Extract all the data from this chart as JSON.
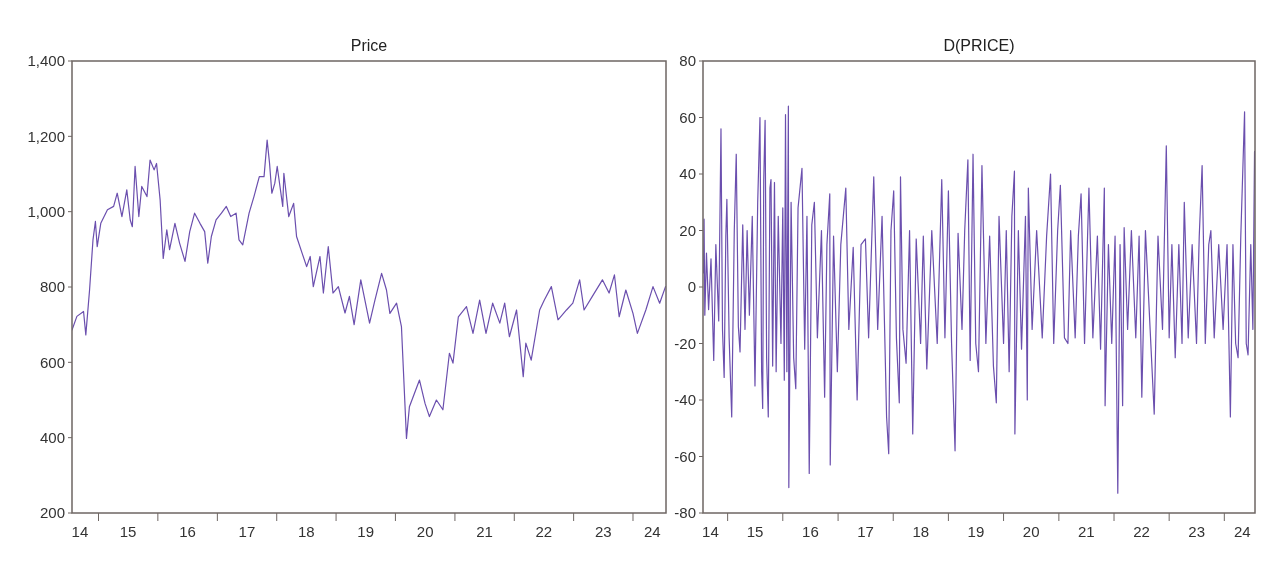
{
  "chart_data": [
    {
      "type": "line",
      "title": "Price",
      "x": [
        "2014-07-22",
        "2014-08-21",
        "2014-10-01",
        "2014-10-15",
        "2014-11-07",
        "2014-11-28",
        "2014-12-13",
        "2014-12-24",
        "2015-01-15",
        "2015-02-25",
        "2015-04-04",
        "2015-04-26",
        "2015-05-25",
        "2015-06-24",
        "2015-07-15",
        "2015-07-28",
        "2015-08-14",
        "2015-09-06",
        "2015-09-24",
        "2015-10-26",
        "2015-11-14",
        "2015-12-09",
        "2015-12-24",
        "2016-01-15",
        "2016-02-03",
        "2016-02-25",
        "2016-03-13",
        "2016-04-15",
        "2016-05-14",
        "2016-06-16",
        "2016-07-15",
        "2016-08-14",
        "2016-09-16",
        "2016-10-15",
        "2016-11-03",
        "2016-11-25",
        "2016-12-24",
        "2017-01-26",
        "2017-02-25",
        "2017-03-24",
        "2017-04-26",
        "2017-05-14",
        "2017-06-06",
        "2017-07-15",
        "2017-08-14",
        "2017-09-16",
        "2017-10-15",
        "2017-11-03",
        "2017-11-18",
        "2017-12-02",
        "2017-12-20",
        "2018-01-04",
        "2018-02-07",
        "2018-02-14",
        "2018-03-16",
        "2018-04-15",
        "2018-05-03",
        "2018-06-06",
        "2018-07-04",
        "2018-07-26",
        "2018-08-14",
        "2018-09-24",
        "2018-10-15",
        "2018-11-14",
        "2018-12-13",
        "2019-01-15",
        "2019-02-25",
        "2019-03-24",
        "2019-04-22",
        "2019-06-02",
        "2019-07-26",
        "2019-08-28",
        "2019-10-08",
        "2019-11-07",
        "2019-11-28",
        "2020-01-08",
        "2020-02-07",
        "2020-03-09",
        "2020-03-27",
        "2020-05-28",
        "2020-07-01",
        "2020-07-28",
        "2020-09-09",
        "2020-10-19",
        "2020-11-28",
        "2020-12-20",
        "2021-01-22",
        "2021-03-13",
        "2021-04-22",
        "2021-06-02",
        "2021-07-11",
        "2021-08-21",
        "2021-10-04",
        "2021-11-03",
        "2021-12-02",
        "2022-01-15",
        "2022-02-25",
        "2022-03-13",
        "2022-04-15",
        "2022-06-06",
        "2022-07-04",
        "2022-08-17",
        "2022-09-27",
        "2022-11-18",
        "2022-12-27",
        "2023-02-07",
        "2023-03-06",
        "2023-04-26",
        "2023-06-27",
        "2023-08-07",
        "2023-09-09",
        "2023-10-08",
        "2023-11-18",
        "2024-01-01",
        "2024-01-28",
        "2024-03-20",
        "2024-05-03",
        "2024-06-13",
        "2024-07-19"
      ],
      "series": [
        {
          "color": "#6b4fae",
          "values": [
            686,
            722,
            735,
            673,
            792,
            925,
            974,
            907,
            969,
            1005,
            1014,
            1049,
            987,
            1058,
            978,
            960,
            1120,
            987,
            1067,
            1040,
            1137,
            1111,
            1128,
            1031,
            876,
            952,
            899,
            969,
            916,
            868,
            947,
            996,
            969,
            947,
            863,
            934,
            978,
            996,
            1014,
            987,
            996,
            925,
            912,
            996,
            1040,
            1093,
            1093,
            1190,
            1128,
            1049,
            1075,
            1120,
            1014,
            1102,
            987,
            1022,
            934,
            890,
            854,
            881,
            801,
            881,
            784,
            907,
            784,
            801,
            731,
            775,
            700,
            819,
            704,
            765,
            836,
            792,
            730,
            757,
            695,
            398,
            482,
            553,
            491,
            456,
            500,
            474,
            624,
            598,
            721,
            748,
            677,
            765,
            677,
            757,
            704,
            757,
            668,
            739,
            562,
            651,
            606,
            739,
            765,
            801,
            713,
            739,
            757,
            819,
            739,
            775,
            819,
            784,
            832,
            721,
            792,
            730,
            677,
            739,
            801,
            757,
            801
          ]
        }
      ],
      "xlim": [
        "2014-07-22",
        "2024-07-22"
      ],
      "xticks": [
        {
          "value": "2015-01-01",
          "label": null
        },
        {
          "value": "2016-01-01",
          "label": null
        },
        {
          "value": "2017-01-01",
          "label": null
        },
        {
          "value": "2018-01-01",
          "label": null
        },
        {
          "value": "2019-01-01",
          "label": null
        },
        {
          "value": "2020-01-01",
          "label": null
        },
        {
          "value": "2021-01-01",
          "label": null
        },
        {
          "value": "2022-01-01",
          "label": null
        },
        {
          "value": "2023-01-01",
          "label": null
        },
        {
          "value": "2024-01-01",
          "label": null
        },
        {
          "value": "2014-09-09",
          "label": "14"
        },
        {
          "value": "2015-07-02",
          "label": "15"
        },
        {
          "value": "2016-07-02",
          "label": "16"
        },
        {
          "value": "2017-07-02",
          "label": "17"
        },
        {
          "value": "2018-07-02",
          "label": "18"
        },
        {
          "value": "2019-07-02",
          "label": "19"
        },
        {
          "value": "2020-07-02",
          "label": "20"
        },
        {
          "value": "2021-07-02",
          "label": "21"
        },
        {
          "value": "2022-07-02",
          "label": "22"
        },
        {
          "value": "2023-07-02",
          "label": "23"
        },
        {
          "value": "2024-04-29",
          "label": "24"
        }
      ],
      "ylim": [
        200,
        1400
      ],
      "yticks": [
        200,
        400,
        600,
        800,
        {
          "value": 1000,
          "label": "1,000"
        },
        {
          "value": 1200,
          "label": "1,200"
        },
        {
          "value": 1400,
          "label": "1,400"
        }
      ]
    },
    {
      "type": "line",
      "title": "D(PRICE)",
      "x": [
        "2014-07-26",
        "2014-07-29",
        "2014-08-03",
        "2014-08-14",
        "2014-08-28",
        "2014-09-13",
        "2014-10-01",
        "2014-10-15",
        "2014-11-03",
        "2014-11-18",
        "2014-11-28",
        "2014-12-09",
        "2014-12-20",
        "2014-12-27",
        "2015-01-11",
        "2015-01-28",
        "2015-02-14",
        "2015-02-27",
        "2015-03-13",
        "2015-03-24",
        "2015-04-11",
        "2015-04-26",
        "2015-05-10",
        "2015-05-25",
        "2015-06-13",
        "2015-07-01",
        "2015-07-19",
        "2015-08-03",
        "2015-08-14",
        "2015-08-21",
        "2015-08-28",
        "2015-09-06",
        "2015-09-16",
        "2015-09-27",
        "2015-10-08",
        "2015-10-15",
        "2015-10-26",
        "2015-11-07",
        "2015-11-18",
        "2015-12-02",
        "2015-12-20",
        "2016-01-01",
        "2016-01-11",
        "2016-01-19",
        "2016-01-28",
        "2016-02-07",
        "2016-02-10",
        "2016-02-25",
        "2016-03-13",
        "2016-03-27",
        "2016-04-11",
        "2016-05-07",
        "2016-05-25",
        "2016-06-09",
        "2016-06-24",
        "2016-07-11",
        "2016-07-28",
        "2016-08-17",
        "2016-09-13",
        "2016-10-04",
        "2016-10-19",
        "2016-11-07",
        "2016-11-10",
        "2016-12-02",
        "2016-12-27",
        "2017-01-19",
        "2017-02-21",
        "2017-03-13",
        "2017-04-11",
        "2017-05-07",
        "2017-06-02",
        "2017-07-01",
        "2017-07-22",
        "2017-08-25",
        "2017-09-20",
        "2017-10-19",
        "2017-11-18",
        "2017-12-02",
        "2017-12-17",
        "2018-01-04",
        "2018-01-22",
        "2018-02-10",
        "2018-02-18",
        "2018-03-06",
        "2018-03-27",
        "2018-04-19",
        "2018-05-10",
        "2018-06-02",
        "2018-07-01",
        "2018-07-19",
        "2018-08-11",
        "2018-09-13",
        "2018-10-19",
        "2018-11-18",
        "2018-12-09",
        "2019-01-01",
        "2019-01-22",
        "2019-02-14",
        "2019-03-06",
        "2019-04-01",
        "2019-04-19",
        "2019-05-10",
        "2019-05-25",
        "2019-06-13",
        "2019-07-01",
        "2019-07-19",
        "2019-08-11",
        "2019-09-06",
        "2019-10-01",
        "2019-10-26",
        "2019-11-14",
        "2019-12-02",
        "2020-01-01",
        "2020-01-19",
        "2020-02-07",
        "2020-02-25",
        "2020-03-13",
        "2020-03-16",
        "2020-04-08",
        "2020-04-29",
        "2020-05-25",
        "2020-06-06",
        "2020-06-13",
        "2020-07-08",
        "2020-08-07",
        "2020-09-13",
        "2020-10-12",
        "2020-11-07",
        "2020-11-28",
        "2020-12-24",
        "2021-01-11",
        "2021-02-07",
        "2021-03-02",
        "2021-03-20",
        "2021-04-19",
        "2021-05-10",
        "2021-05-28",
        "2021-06-20",
        "2021-07-19",
        "2021-08-14",
        "2021-09-13",
        "2021-10-04",
        "2021-10-29",
        "2021-11-03",
        "2021-11-25",
        "2021-12-17",
        "2022-01-08",
        "2022-01-26",
        "2022-02-10",
        "2022-02-27",
        "2022-03-09",
        "2022-04-01",
        "2022-04-26",
        "2022-05-25",
        "2022-06-16",
        "2022-07-04",
        "2022-07-28",
        "2022-08-28",
        "2022-09-24",
        "2022-10-19",
        "2022-11-18",
        "2022-12-13",
        "2023-01-01",
        "2023-01-19",
        "2023-02-10",
        "2023-03-06",
        "2023-03-27",
        "2023-04-11",
        "2023-05-07",
        "2023-06-02",
        "2023-07-01",
        "2023-07-19",
        "2023-08-07",
        "2023-08-28",
        "2023-09-20",
        "2023-10-04",
        "2023-10-26",
        "2023-11-25",
        "2023-12-24",
        "2024-01-19",
        "2024-02-10",
        "2024-02-27",
        "2024-03-16",
        "2024-04-01",
        "2024-04-19",
        "2024-05-14",
        "2024-05-25",
        "2024-06-06",
        "2024-06-24",
        "2024-07-08",
        "2024-07-19"
      ],
      "series": [
        {
          "color": "#6b4fae",
          "values": [
            5,
            24,
            -10,
            12,
            -8,
            10,
            -26,
            15,
            -12,
            56,
            -15,
            -32,
            18,
            31,
            -18,
            -46,
            20,
            47,
            -14,
            -23,
            22,
            -15,
            20,
            -10,
            25,
            -35,
            30,
            60,
            -30,
            -43,
            38,
            59,
            -25,
            -46,
            35,
            38,
            -28,
            37,
            -30,
            25,
            -20,
            28,
            -33,
            61,
            -30,
            64,
            -71,
            30,
            -25,
            -36,
            28,
            42,
            -22,
            25,
            -66,
            22,
            30,
            -18,
            20,
            -39,
            15,
            33,
            -63,
            18,
            -30,
            15,
            35,
            -15,
            14,
            -40,
            15,
            17,
            -18,
            39,
            -15,
            25,
            -46,
            -59,
            20,
            34,
            -18,
            -41,
            39,
            -15,
            -27,
            20,
            -52,
            17,
            -20,
            18,
            -29,
            20,
            -20,
            38,
            -18,
            34,
            -20,
            -58,
            19,
            -15,
            20,
            45,
            -26,
            47,
            -20,
            -30,
            43,
            -20,
            18,
            -28,
            -41,
            25,
            -20,
            20,
            -30,
            25,
            41,
            -52,
            20,
            -22,
            25,
            -40,
            35,
            -15,
            20,
            -18,
            18,
            40,
            -20,
            20,
            36,
            -18,
            -20,
            20,
            -18,
            18,
            33,
            -20,
            35,
            -18,
            18,
            -22,
            35,
            -42,
            15,
            -20,
            18,
            -73,
            15,
            -42,
            21,
            -15,
            20,
            -18,
            18,
            -39,
            20,
            -15,
            -45,
            18,
            -15,
            50,
            -18,
            15,
            -25,
            15,
            -20,
            30,
            -18,
            15,
            -20,
            18,
            43,
            -20,
            15,
            20,
            -18,
            15,
            -15,
            15,
            -46,
            15,
            -20,
            -25,
            18,
            62,
            -20,
            -24,
            15,
            -15,
            48
          ]
        }
      ],
      "xlim": [
        "2014-07-22",
        "2024-07-22"
      ],
      "xticks": [
        {
          "value": "2015-01-01",
          "label": null
        },
        {
          "value": "2016-01-01",
          "label": null
        },
        {
          "value": "2017-01-01",
          "label": null
        },
        {
          "value": "2018-01-01",
          "label": null
        },
        {
          "value": "2019-01-01",
          "label": null
        },
        {
          "value": "2020-01-01",
          "label": null
        },
        {
          "value": "2021-01-01",
          "label": null
        },
        {
          "value": "2022-01-01",
          "label": null
        },
        {
          "value": "2023-01-01",
          "label": null
        },
        {
          "value": "2024-01-01",
          "label": null
        },
        {
          "value": "2014-09-09",
          "label": "14"
        },
        {
          "value": "2015-07-02",
          "label": "15"
        },
        {
          "value": "2016-07-02",
          "label": "16"
        },
        {
          "value": "2017-07-02",
          "label": "17"
        },
        {
          "value": "2018-07-02",
          "label": "18"
        },
        {
          "value": "2019-07-02",
          "label": "19"
        },
        {
          "value": "2020-07-02",
          "label": "20"
        },
        {
          "value": "2021-07-02",
          "label": "21"
        },
        {
          "value": "2022-07-02",
          "label": "22"
        },
        {
          "value": "2023-07-02",
          "label": "23"
        },
        {
          "value": "2024-04-29",
          "label": "24"
        }
      ],
      "ylim": [
        -80,
        80
      ],
      "yticks": [
        -80,
        -60,
        -40,
        -20,
        0,
        20,
        40,
        60,
        80
      ]
    }
  ]
}
